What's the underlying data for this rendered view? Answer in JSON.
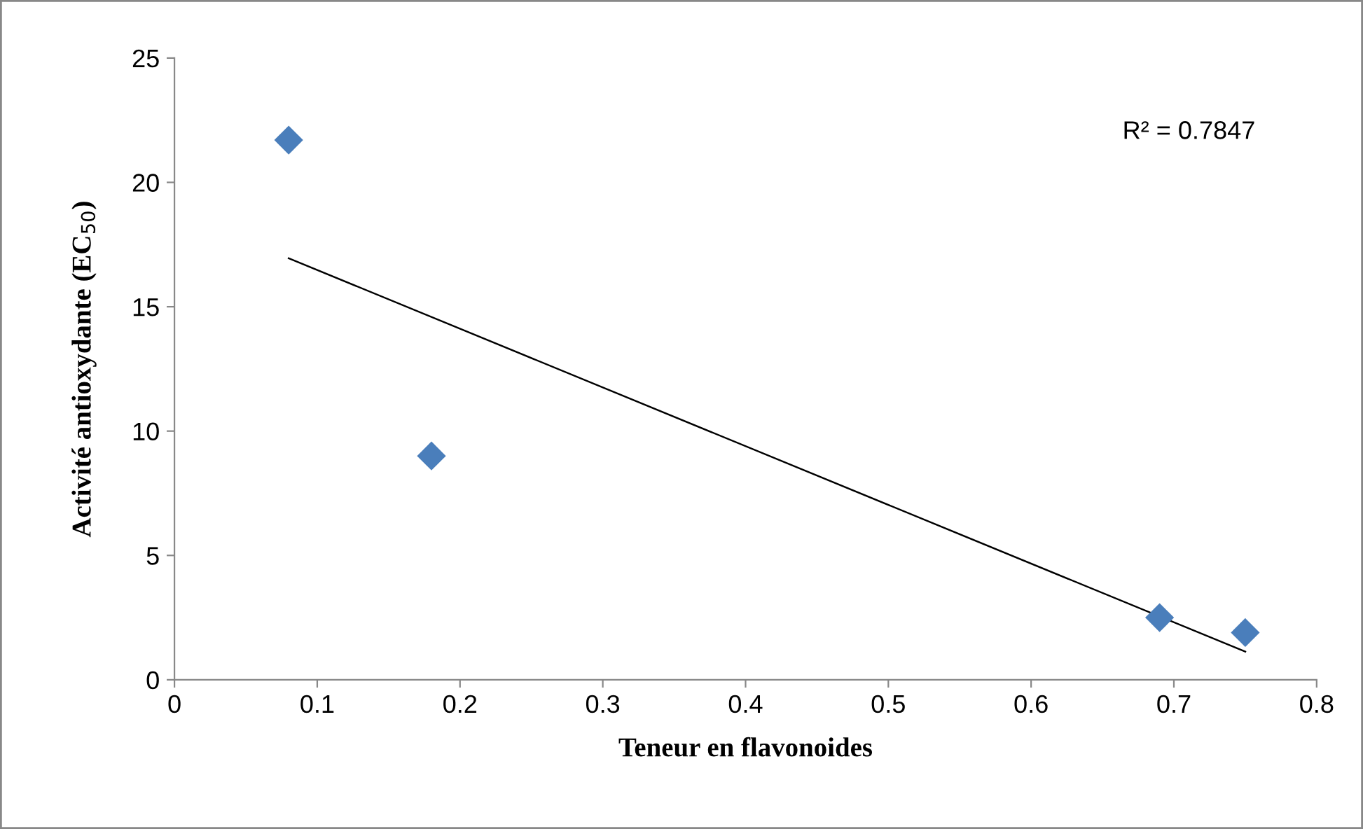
{
  "chart_data": {
    "type": "scatter",
    "xlabel": "Teneur en flavonoides",
    "ylabel": "Activité antioxydante (EC$_{50}$)",
    "xlim": [
      0,
      0.8
    ],
    "xticks": [
      0,
      0.1,
      0.2,
      0.3,
      0.4,
      0.5,
      0.6,
      0.7,
      0.8
    ],
    "ylim": [
      0,
      25
    ],
    "yticks": [
      0,
      5,
      10,
      15,
      20,
      25
    ],
    "grid": false,
    "legend": false,
    "marker": "diamond",
    "series": [
      {
        "color": "#4a7ebb",
        "x": [
          0.08,
          0.18,
          0.69,
          0.75
        ],
        "values": [
          21.7,
          9.0,
          2.5,
          1.9
        ]
      },
      {
        "type": "line",
        "color": "#000000",
        "marker": "none",
        "line_style": "solid",
        "x": [
          0.08,
          0.75
        ],
        "values": [
          16.95,
          1.13
        ]
      }
    ],
    "annotations": [
      "R² = 0.7847"
    ]
  }
}
